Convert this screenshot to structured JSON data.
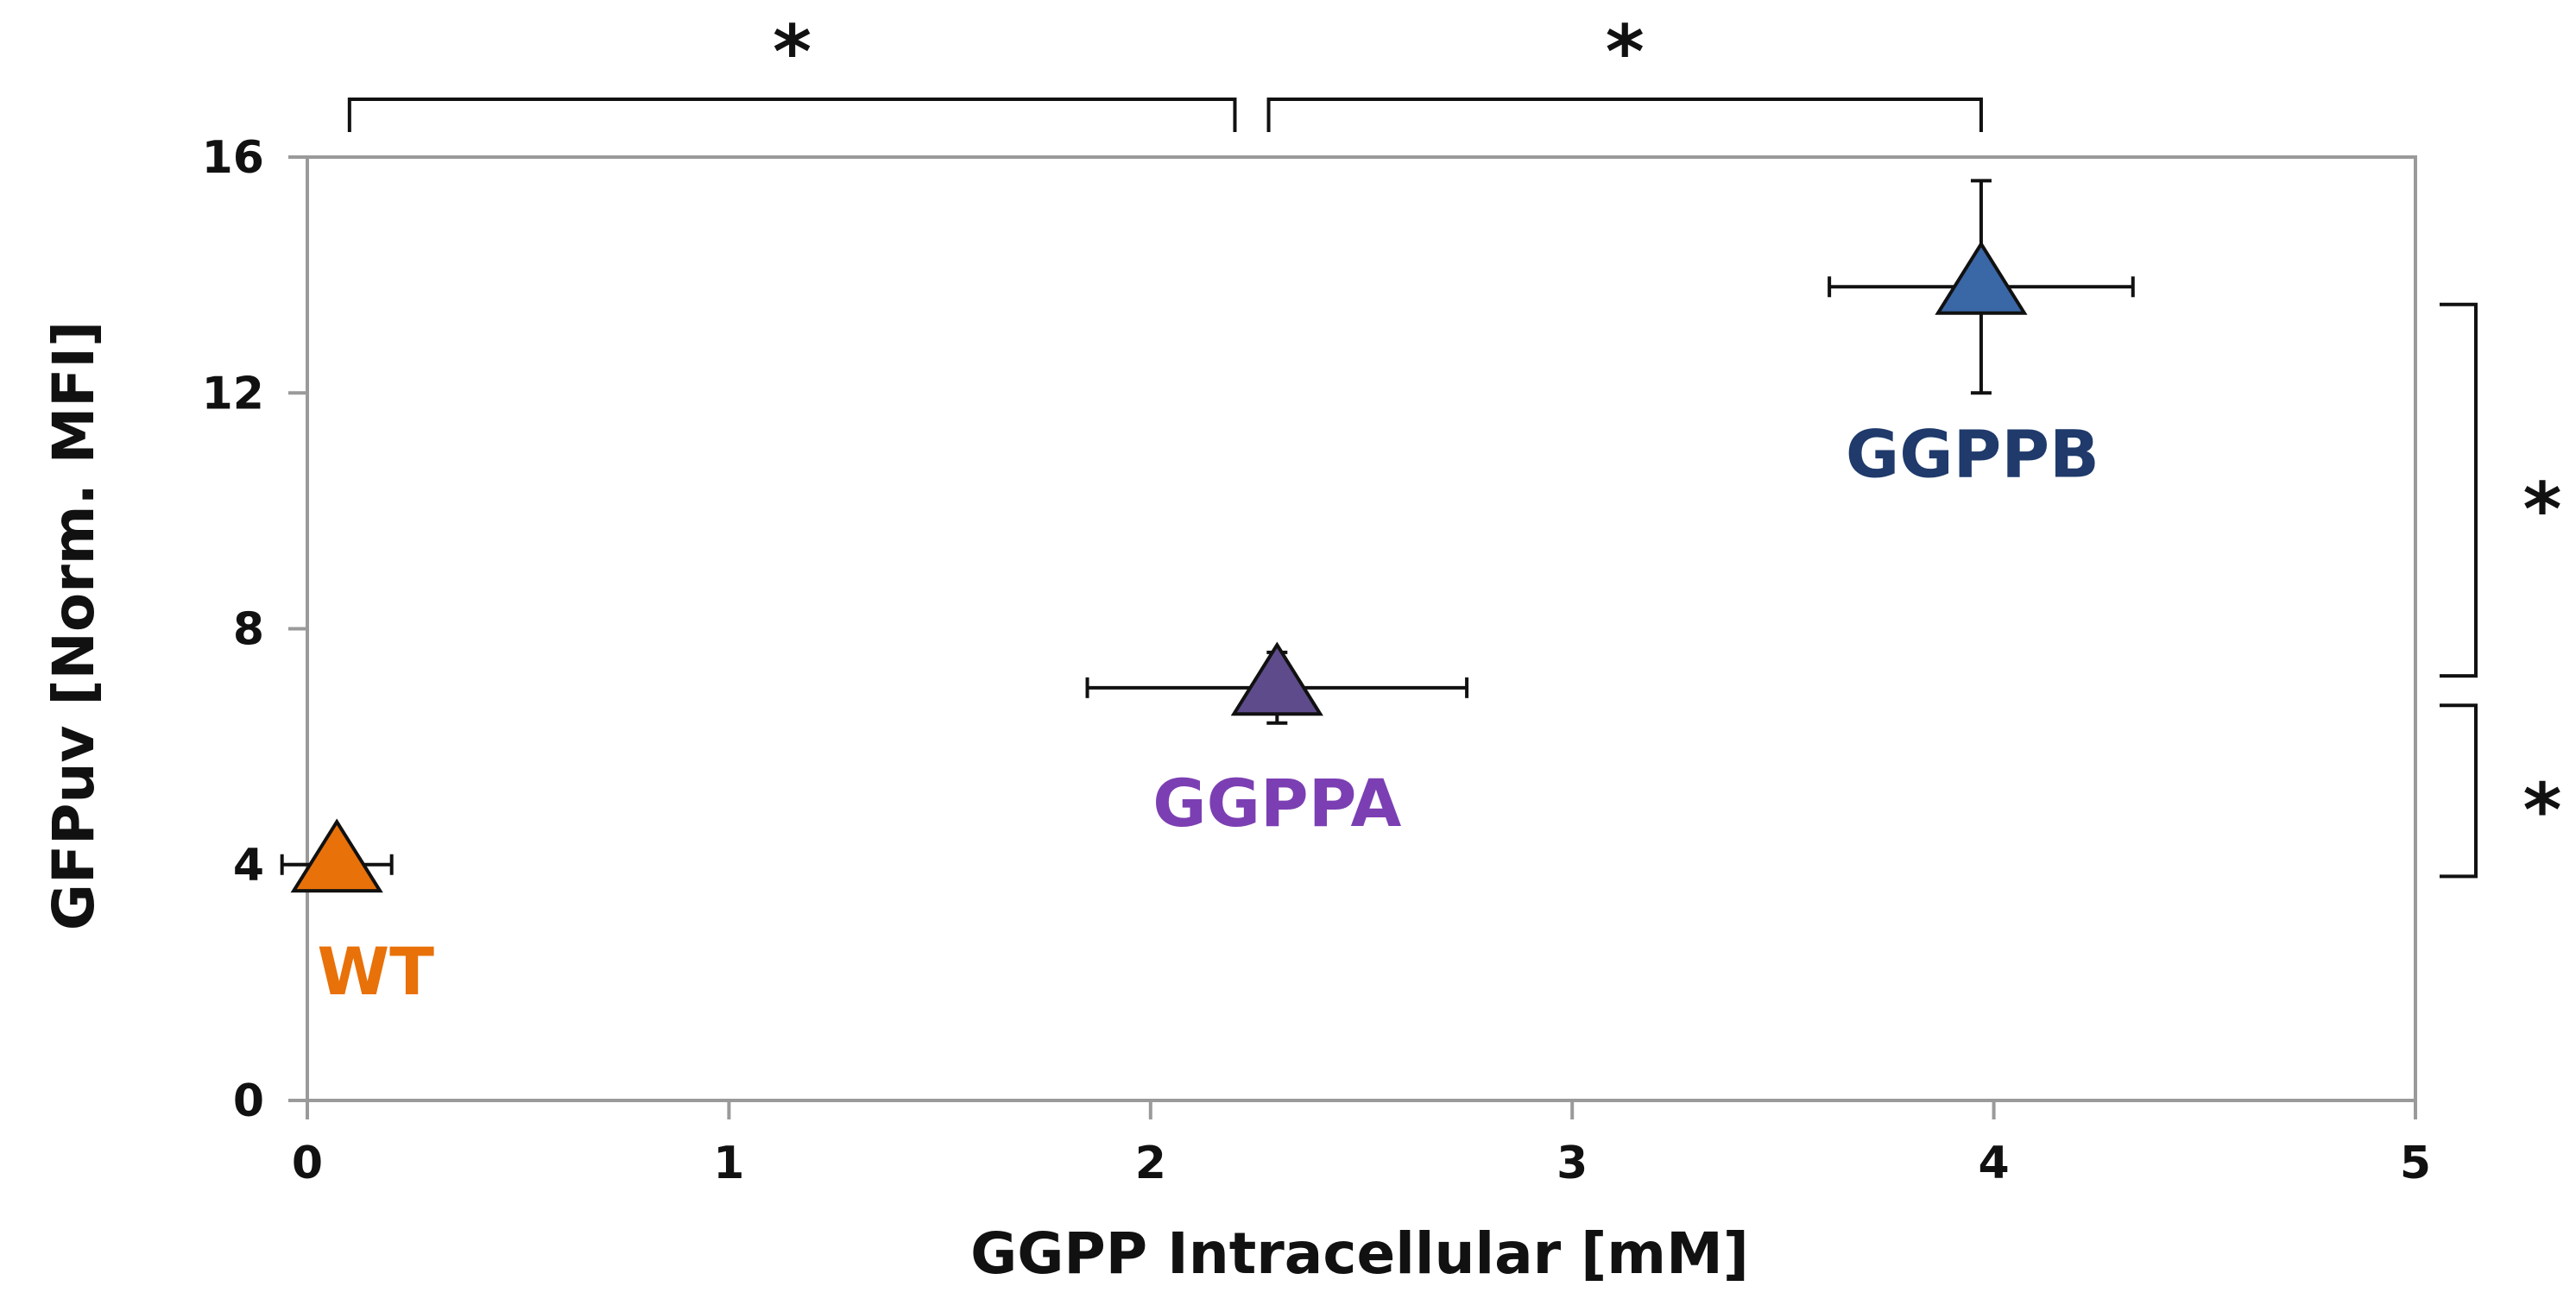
{
  "chart_data": {
    "type": "scatter",
    "title": "",
    "xlabel": "GGPP Intracellular [mM]",
    "ylabel": "GFPuv [Norm. MFI]",
    "xlim": [
      0,
      5
    ],
    "ylim": [
      0,
      16
    ],
    "xticks": [
      0,
      1,
      2,
      3,
      4,
      5
    ],
    "yticks": [
      0,
      4,
      8,
      12,
      16
    ],
    "xtick_labels": [
      "0",
      "1",
      "2",
      "3",
      "4",
      "5"
    ],
    "ytick_labels": [
      "0",
      "4",
      "8",
      "12",
      "16"
    ],
    "grid": false,
    "legend": "none",
    "marker": "triangle",
    "points": [
      {
        "label": "WT",
        "x": 0.07,
        "y": 4.0,
        "xerr": 0.13,
        "yerr": 0.1,
        "color": "#E8710A",
        "label_color": "#E8710A"
      },
      {
        "label": "GGPPA",
        "x": 2.3,
        "y": 7.0,
        "xerr": 0.45,
        "yerr": 0.6,
        "color": "#5E4B8B",
        "label_color": "#7B3FB3"
      },
      {
        "label": "GGPPB",
        "x": 3.97,
        "y": 13.8,
        "xerr": 0.36,
        "yerr": 1.8,
        "color": "#3A67A6",
        "label_color": "#1F3A6B"
      }
    ],
    "significance_brackets": [
      {
        "orientation": "top",
        "from": 0.1,
        "to": 2.2,
        "label": "*"
      },
      {
        "orientation": "top",
        "from": 2.28,
        "to": 3.97,
        "label": "*"
      },
      {
        "orientation": "right",
        "from": 7.2,
        "to": 13.5,
        "label": "*"
      },
      {
        "orientation": "right",
        "from": 3.8,
        "to": 6.7,
        "label": "*"
      }
    ],
    "colors": {
      "axis": "#9A9A9A",
      "text": "#111111",
      "errorbar": "#111111"
    }
  }
}
